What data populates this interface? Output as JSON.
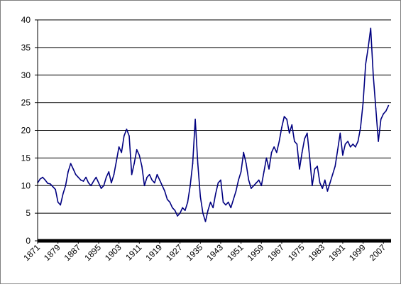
{
  "chart_data": {
    "type": "line",
    "title": "",
    "xlabel": "",
    "ylabel": "",
    "ylim": [
      0,
      40
    ],
    "xlim": [
      1871,
      2010
    ],
    "yticks": [
      0,
      5,
      10,
      15,
      20,
      25,
      30,
      35,
      40
    ],
    "xtick_labels": [
      "1871",
      "1879",
      "1887",
      "1895",
      "1903",
      "1911",
      "1919",
      "1927",
      "1935",
      "1943",
      "1951",
      "1959",
      "1967",
      "1975",
      "1983",
      "1991",
      "1999",
      "2007"
    ],
    "grid": true,
    "legend": "none",
    "colors": {
      "series": "#000080",
      "grid": "#000000",
      "axis": "#000000"
    },
    "series": [
      {
        "x": [
          1871,
          1872,
          1873,
          1874,
          1875,
          1876,
          1877,
          1878,
          1879,
          1880,
          1881,
          1882,
          1883,
          1884,
          1885,
          1886,
          1887,
          1888,
          1889,
          1890,
          1891,
          1892,
          1893,
          1894,
          1895,
          1896,
          1897,
          1898,
          1899,
          1900,
          1901,
          1902,
          1903,
          1904,
          1905,
          1906,
          1907,
          1908,
          1909,
          1910,
          1911,
          1912,
          1913,
          1914,
          1915,
          1916,
          1917,
          1918,
          1919,
          1920,
          1921,
          1922,
          1923,
          1924,
          1925,
          1926,
          1927,
          1928,
          1929,
          1930,
          1931,
          1932,
          1933,
          1934,
          1935,
          1936,
          1937,
          1938,
          1939,
          1940,
          1941,
          1942,
          1943,
          1944,
          1945,
          1946,
          1947,
          1948,
          1949,
          1950,
          1951,
          1952,
          1953,
          1954,
          1955,
          1956,
          1957,
          1958,
          1959,
          1960,
          1961,
          1962,
          1963,
          1964,
          1965,
          1966,
          1967,
          1968,
          1969,
          1970,
          1971,
          1972,
          1973,
          1974,
          1975,
          1976,
          1977,
          1978,
          1979,
          1980,
          1981,
          1982,
          1983,
          1984,
          1985,
          1986,
          1987,
          1988,
          1989,
          1990,
          1991,
          1992,
          1993,
          1994,
          1995,
          1996,
          1997,
          1998,
          1999,
          2000,
          2001,
          2002,
          2003,
          2004,
          2005,
          2006,
          2007,
          2008,
          2009
        ],
        "values": [
          10.5,
          11.2,
          11.5,
          11.0,
          10.4,
          10.3,
          9.8,
          9.3,
          7.0,
          6.5,
          8.5,
          10.0,
          12.5,
          14.0,
          13.0,
          12.0,
          11.5,
          11.0,
          10.8,
          11.5,
          10.5,
          10.0,
          10.8,
          11.5,
          10.5,
          9.5,
          10.0,
          11.5,
          12.5,
          10.5,
          12.0,
          14.5,
          17.0,
          16.0,
          19.0,
          20.2,
          19.0,
          12.0,
          14.0,
          16.5,
          15.5,
          13.5,
          10.0,
          11.5,
          12.0,
          11.0,
          10.5,
          12.0,
          11.0,
          10.0,
          9.0,
          7.5,
          7.0,
          6.0,
          5.5,
          4.5,
          5.0,
          6.0,
          5.5,
          7.0,
          10.0,
          14.0,
          22.0,
          14.0,
          8.0,
          5.0,
          3.5,
          5.5,
          7.0,
          6.0,
          8.5,
          10.5,
          11.0,
          7.0,
          6.5,
          7.0,
          6.0,
          7.5,
          9.0,
          11.0,
          12.5,
          16.0,
          14.0,
          11.0,
          9.5,
          10.0,
          10.5,
          11.0,
          10.0,
          12.5,
          15.0,
          13.0,
          16.0,
          17.0,
          16.0,
          18.0,
          20.5,
          22.5,
          22.0,
          19.5,
          21.0,
          18.0,
          17.5,
          13.0,
          16.0,
          18.5,
          19.5,
          15.0,
          10.0,
          13.0,
          13.5,
          10.5,
          9.5,
          11.0,
          9.0,
          10.5,
          12.0,
          13.5,
          16.5,
          19.5,
          15.5,
          17.5,
          18.0,
          17.0,
          17.5,
          17.0,
          18.0,
          20.5,
          25.0,
          32.0,
          35.0,
          38.5,
          30.0,
          24.0,
          18.0,
          22.0,
          23.0,
          23.5,
          24.5
        ]
      }
    ]
  }
}
